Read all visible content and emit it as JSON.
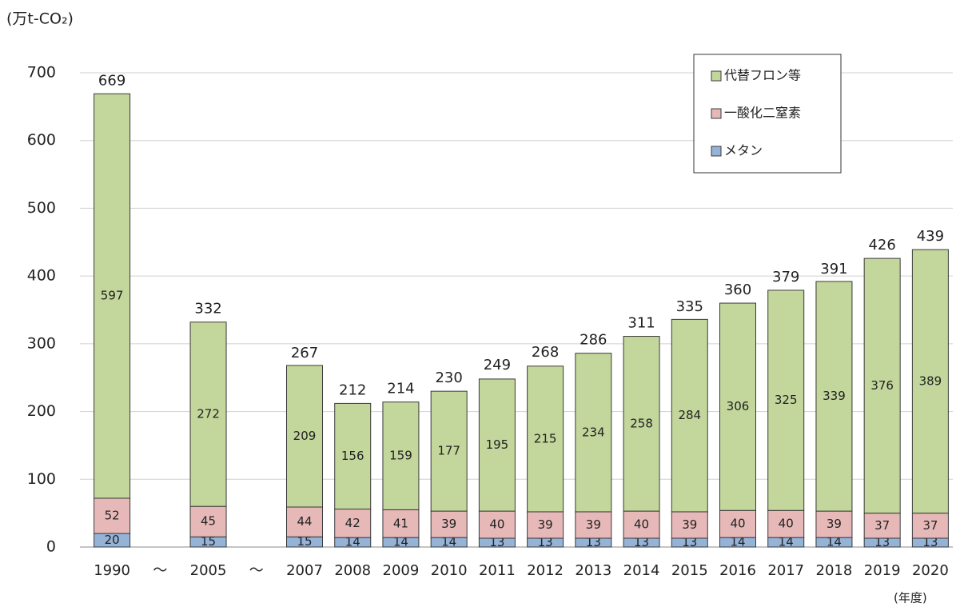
{
  "chart_data": {
    "type": "stacked-bar",
    "y_label": "(万t-CO₂)",
    "x_label": "(年度)",
    "categories": [
      "1990",
      "～",
      "2005",
      "～",
      "2007",
      "2008",
      "2009",
      "2010",
      "2011",
      "2012",
      "2013",
      "2014",
      "2015",
      "2016",
      "2017",
      "2018",
      "2019",
      "2020"
    ],
    "series": [
      {
        "name": "メタン",
        "color": "#95b3d7",
        "values": [
          20,
          null,
          15,
          null,
          15,
          14,
          14,
          14,
          13,
          13,
          13,
          13,
          13,
          14,
          14,
          14,
          13,
          13
        ]
      },
      {
        "name": "一酸化二窒素",
        "color": "#e6b9b8",
        "values": [
          52,
          null,
          45,
          null,
          44,
          42,
          41,
          39,
          40,
          39,
          39,
          40,
          39,
          40,
          40,
          39,
          37,
          37
        ]
      },
      {
        "name": "代替フロン等",
        "color": "#c3d69b",
        "values": [
          597,
          null,
          272,
          null,
          209,
          156,
          159,
          177,
          195,
          215,
          234,
          258,
          284,
          306,
          325,
          339,
          376,
          389
        ]
      }
    ],
    "totals": [
      669,
      null,
      332,
      null,
      267,
      212,
      214,
      230,
      249,
      268,
      286,
      311,
      335,
      360,
      379,
      391,
      426,
      439
    ],
    "ylim": [
      0,
      700
    ],
    "yticks": [
      0,
      100,
      200,
      300,
      400,
      500,
      600,
      700
    ],
    "grid": true
  }
}
